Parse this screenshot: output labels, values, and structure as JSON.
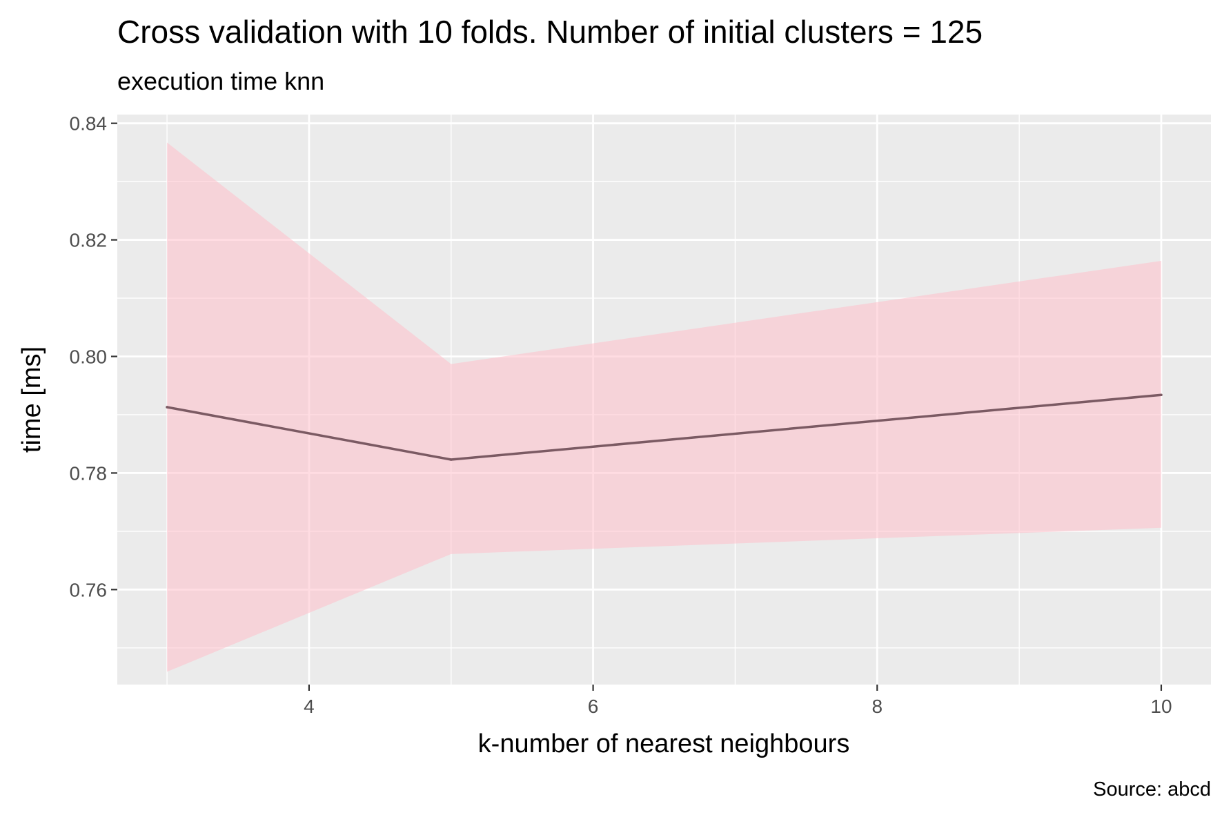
{
  "chart_data": {
    "type": "line",
    "title": "Cross validation with 10 folds. Number of initial clusters =  125",
    "subtitle": "execution time knn",
    "xlabel": "k-number of nearest neighbours",
    "ylabel": "time [ms]",
    "caption": "Source: abcd",
    "xlim": [
      2.65,
      10.35
    ],
    "ylim": [
      0.7437,
      0.8415
    ],
    "x_ticks": [
      4,
      6,
      8,
      10
    ],
    "x_tick_labels": [
      "4",
      "6",
      "8",
      "10"
    ],
    "y_ticks": [
      0.76,
      0.78,
      0.8,
      0.82,
      0.84
    ],
    "y_tick_labels": [
      "0.76",
      "0.78",
      "0.80",
      "0.82",
      "0.84"
    ],
    "grid": true,
    "x": [
      3,
      5,
      10
    ],
    "series": [
      {
        "values": [
          0.7913,
          0.7823,
          0.7934
        ],
        "lower": [
          0.7459,
          0.7661,
          0.7706
        ],
        "upper": [
          0.8367,
          0.7987,
          0.8164
        ],
        "color": "#7b5a63",
        "band_color": "#ffc0cb"
      }
    ]
  },
  "colors": {
    "panel_background": "#ebebeb",
    "grid_line": "#ffffff",
    "line": "#7b5a63",
    "ribbon": "#ffc0cb"
  }
}
